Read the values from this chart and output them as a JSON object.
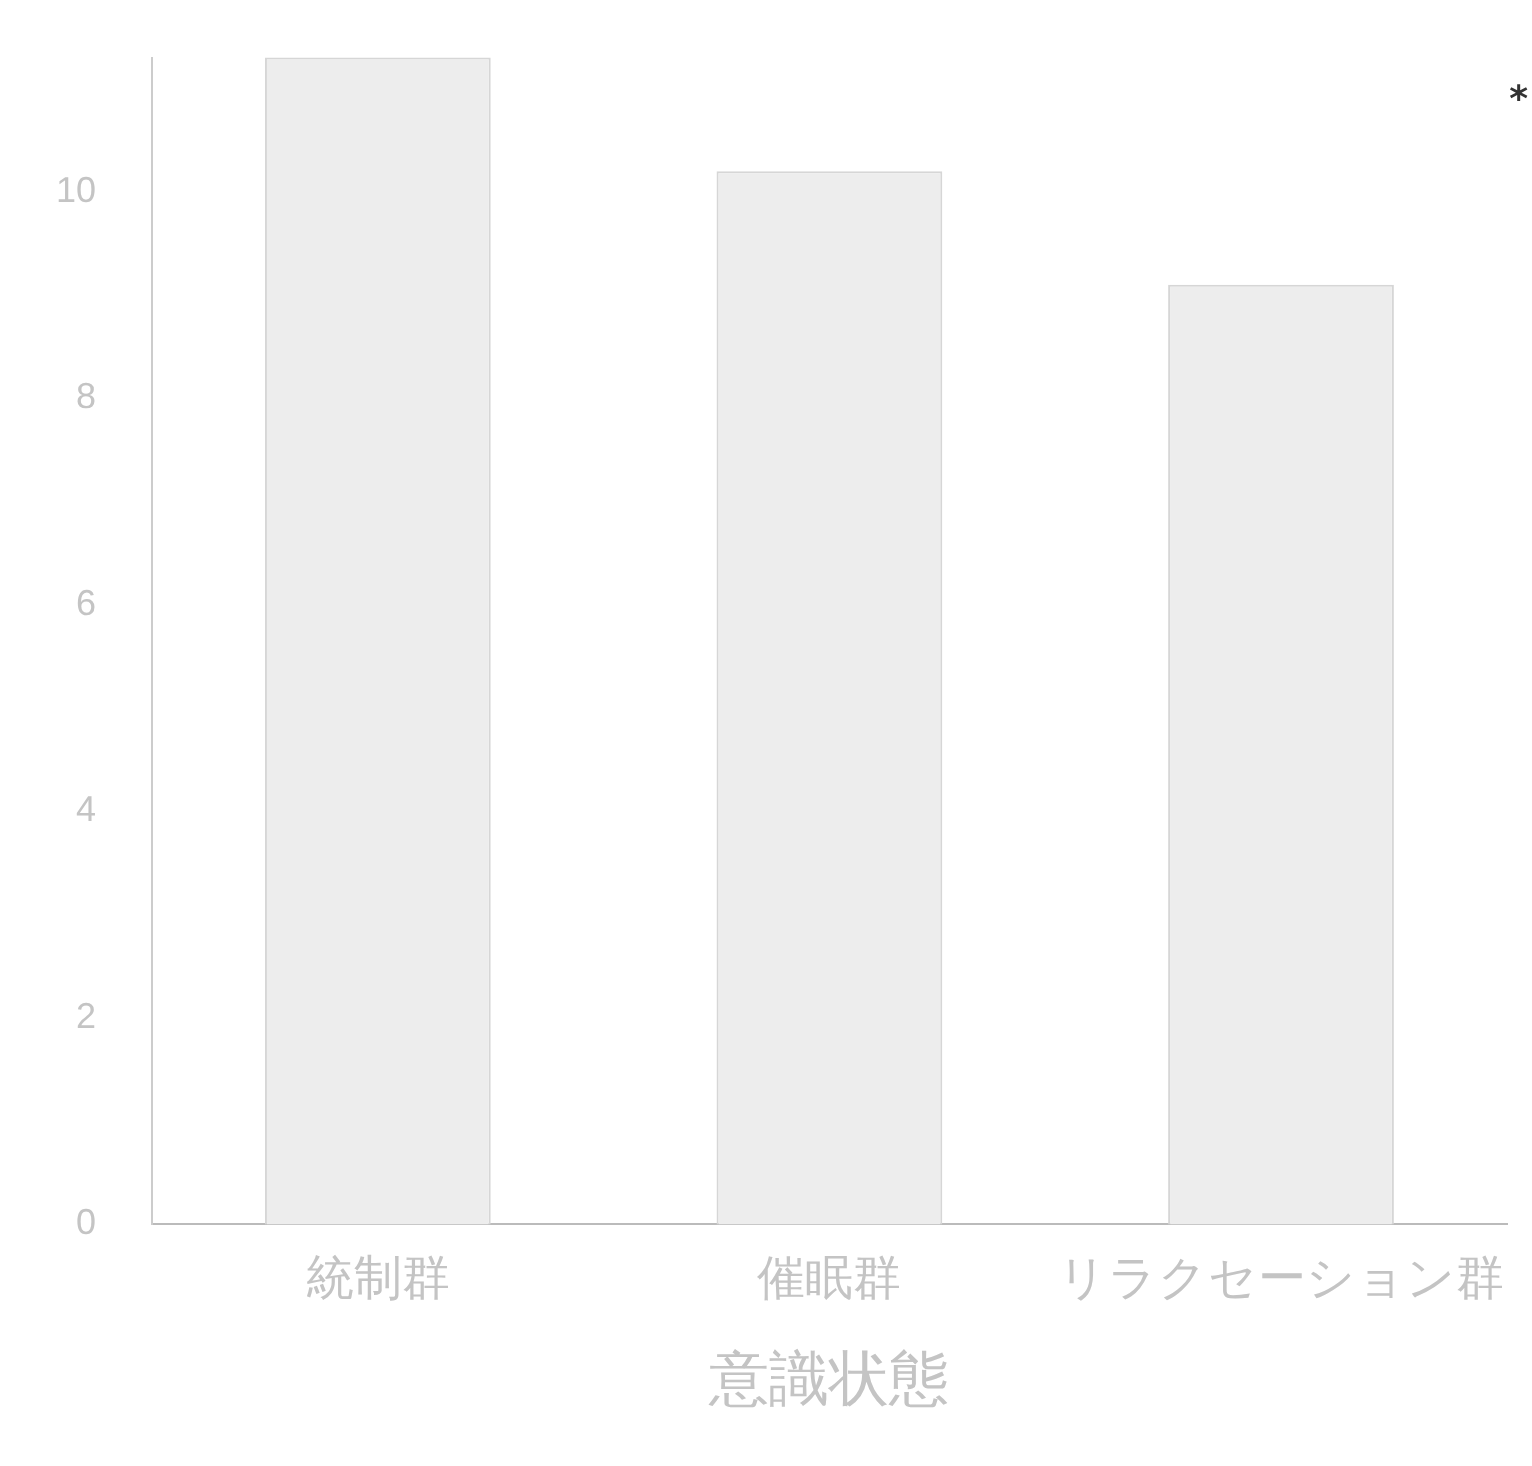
{
  "chart_data": {
    "type": "bar",
    "xlabel": "意識状態",
    "categories": [
      "統制群",
      "催眠群",
      "リラクセーション群"
    ],
    "values": [
      11.3,
      10.2,
      9.1
    ],
    "color": "#ededed",
    "ylim": [
      0,
      11.3
    ],
    "yticks": [
      0,
      2,
      4,
      6,
      8,
      10
    ],
    "grid": false,
    "legend": false,
    "annotations": [
      "*"
    ]
  }
}
